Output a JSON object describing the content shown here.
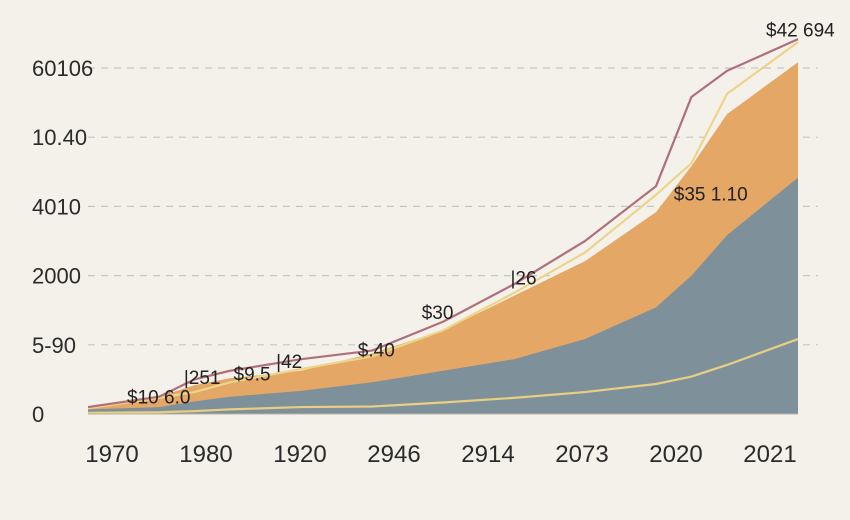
{
  "chart_data": {
    "type": "area",
    "title": "",
    "xlabel": "",
    "ylabel": "",
    "grid": true,
    "y_tick_labels": [
      "0",
      "5-90",
      "2000",
      "4010",
      "10.40",
      "60106"
    ],
    "x_tick_labels": [
      "1970",
      "1980",
      "1920",
      "2946",
      "2914",
      "2073",
      "2020",
      "2021"
    ],
    "ylim": [
      0,
      6
    ],
    "x": [
      0,
      1,
      1.5,
      2,
      3,
      4,
      5,
      6,
      7,
      8,
      8.5,
      9,
      10
    ],
    "series": [
      {
        "name": "gray-area",
        "kind": "area",
        "values": [
          0.08,
          0.12,
          0.22,
          0.3,
          0.4,
          0.55,
          0.75,
          0.95,
          1.3,
          1.85,
          2.4,
          3.1,
          4.1
        ]
      },
      {
        "name": "orange-area",
        "kind": "area",
        "values": [
          0.12,
          0.3,
          0.5,
          0.62,
          0.75,
          1.05,
          1.45,
          2.05,
          2.65,
          3.5,
          4.3,
          5.2,
          6.1
        ]
      },
      {
        "name": "light-yellow-line",
        "kind": "line",
        "values": [
          0.1,
          0.28,
          0.38,
          0.55,
          0.78,
          1.0,
          1.45,
          2.1,
          2.8,
          3.8,
          4.35,
          5.55,
          6.45
        ]
      },
      {
        "name": "mauve-line",
        "kind": "line",
        "values": [
          0.12,
          0.3,
          0.6,
          0.75,
          0.95,
          1.1,
          1.6,
          2.25,
          3.0,
          3.95,
          5.5,
          5.95,
          6.5
        ]
      },
      {
        "name": "lower-yellow-line",
        "kind": "line",
        "values": [
          0.02,
          0.03,
          0.05,
          0.08,
          0.12,
          0.13,
          0.2,
          0.28,
          0.38,
          0.52,
          0.65,
          0.85,
          1.3
        ]
      }
    ],
    "annotations": [
      {
        "text": "$10 6.0",
        "x": 0.55,
        "y": 0.18
      },
      {
        "text": "|251",
        "x": 1.35,
        "y": 0.52
      },
      {
        "text": "$9.5",
        "x": 2.05,
        "y": 0.58
      },
      {
        "text": "|42",
        "x": 2.65,
        "y": 0.8
      },
      {
        "text": "$.40",
        "x": 3.8,
        "y": 1.0
      },
      {
        "text": "$30",
        "x": 4.7,
        "y": 1.65
      },
      {
        "text": "|26",
        "x": 5.95,
        "y": 2.25
      },
      {
        "text": "$35   1.10",
        "x": 8.25,
        "y": 3.7
      },
      {
        "text": "$42 694",
        "x": 9.55,
        "y": 6.55
      }
    ],
    "colors": {
      "gray_area": "#7e919b",
      "orange_area": "#e4a766",
      "light_yellow_line": "#ecd58a",
      "mauve_line": "#b0707b",
      "lower_yellow_line": "#e8ce82",
      "grid": "#c6c6c6",
      "background": "#f4f1ea"
    }
  }
}
